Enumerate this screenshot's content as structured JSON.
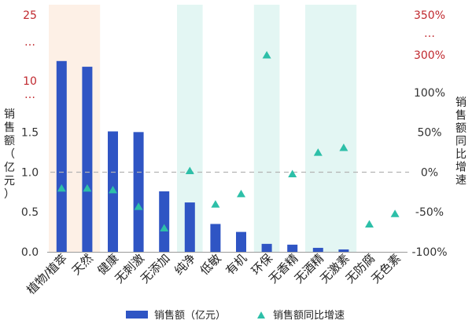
{
  "chart_data": {
    "type": "bar",
    "categories": [
      "植物/植萃",
      "天然",
      "健康",
      "无刺激",
      "无添加",
      "纯净",
      "低敏",
      "有机",
      "环保",
      "无香精",
      "无酒精",
      "无激素",
      "无防腐",
      "无色素"
    ],
    "series": [
      {
        "name": "销售额（亿元）",
        "type": "bar",
        "axis": "left",
        "color": "#2f55c4",
        "values": [
          14.5,
          13.2,
          1.63,
          1.52,
          0.76,
          0.62,
          0.35,
          0.25,
          0.1,
          0.09,
          0.05,
          0.03,
          0,
          0
        ]
      },
      {
        "name": "销售额同比增速",
        "type": "scatter",
        "marker": "triangle",
        "axis": "right",
        "color": "#2dbfa8",
        "values": [
          -20,
          -20,
          -22,
          -43,
          -70,
          2,
          -40,
          -27,
          300,
          -2,
          25,
          31,
          -65,
          -52
        ]
      }
    ],
    "ylabel": "销售额（亿元）",
    "y2label": "销售额同比增速",
    "yticks": [
      "0.0",
      "0.5",
      "1.0",
      "1.5",
      "…",
      "10",
      "…",
      "25"
    ],
    "y2ticks": [
      "-100%",
      "-50%",
      "0%",
      "50%",
      "100%",
      "300%",
      "…",
      "350%",
      "…"
    ],
    "ylim": [
      0,
      25
    ],
    "y2lim": [
      -100,
      350
    ],
    "y_axis_break": "between 1.5 and 10",
    "y2_axis_break": "between 100% and 300%",
    "reference_line": {
      "value": 1.0,
      "style": "dashed"
    },
    "highlighted_categories": [
      {
        "categories": [
          "植物/植萃",
          "天然"
        ],
        "color": "#fdf0e6"
      },
      {
        "categories": [
          "纯净"
        ],
        "color": "#e3f6f3"
      },
      {
        "categories": [
          "环保"
        ],
        "color": "#e3f6f3"
      },
      {
        "categories": [
          "无酒精",
          "无激素"
        ],
        "color": "#e3f6f3"
      }
    ],
    "legend_position": "bottom",
    "colors": {
      "bar": "#2f55c4",
      "marker": "#2dbfa8",
      "tick_red": "#c0282e",
      "axis": "#333333"
    }
  }
}
